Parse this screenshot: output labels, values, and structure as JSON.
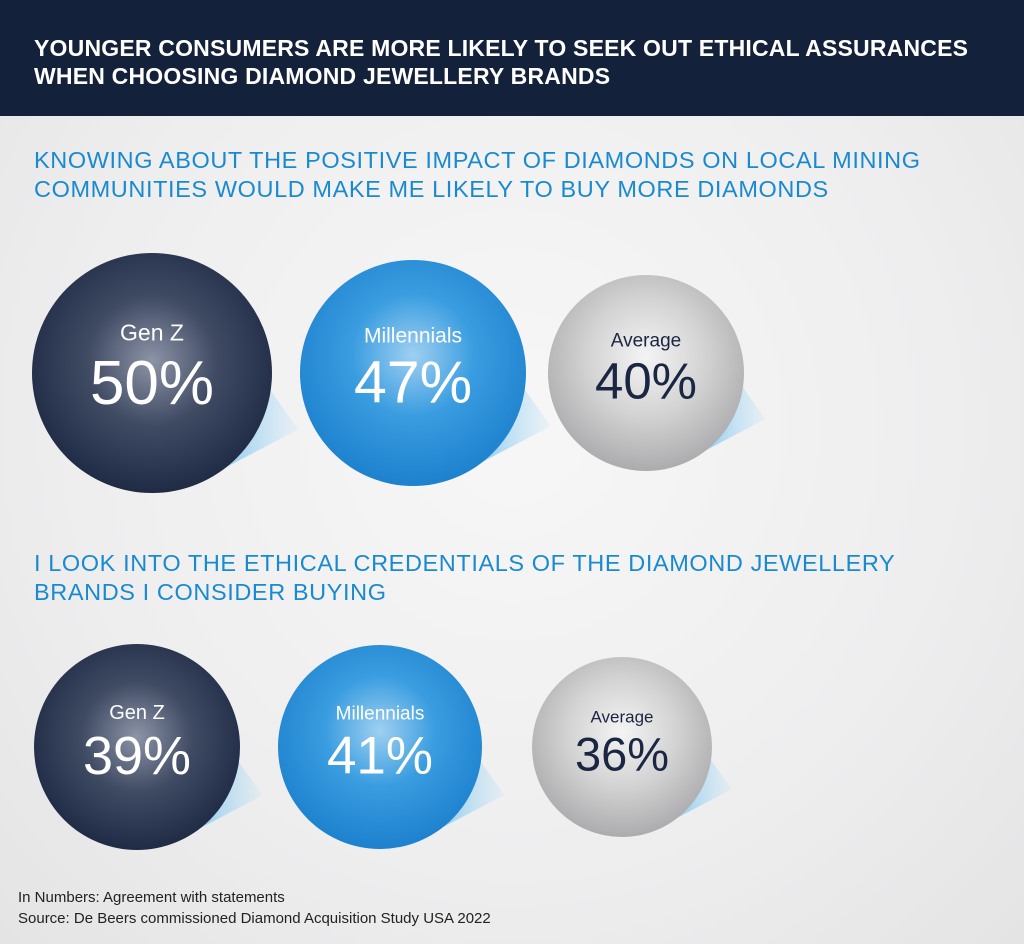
{
  "header": {
    "title": "YOUNGER CONSUMERS ARE MORE LIKELY TO SEEK OUT ETHICAL ASSURANCES WHEN CHOOSING DIAMOND JEWELLERY BRANDS"
  },
  "chart_data": [
    {
      "type": "bubble",
      "title": "KNOWING ABOUT THE POSITIVE IMPACT OF DIAMONDS ON LOCAL MINING COMMUNITIES WOULD MAKE ME LIKELY TO BUY MORE DIAMONDS",
      "categories": [
        "Gen Z",
        "Millennials",
        "Average"
      ],
      "values": [
        50,
        47,
        40
      ],
      "value_labels": [
        "50%",
        "47%",
        "40%"
      ],
      "unit": "%"
    },
    {
      "type": "bubble",
      "title": "I LOOK INTO THE ETHICAL CREDENTIALS OF THE DIAMOND JEWELLERY BRANDS I CONSIDER BUYING",
      "categories": [
        "Gen Z",
        "Millennials",
        "Average"
      ],
      "values": [
        39,
        41,
        36
      ],
      "value_labels": [
        "39%",
        "41%",
        "36%"
      ],
      "unit": "%"
    }
  ],
  "colors": {
    "header_bg": "#14213a",
    "section_title": "#1a8ad0",
    "gen_z": "#1b2742",
    "millennials": "#1f86d2",
    "average": "#b4b4b6"
  },
  "footer": {
    "line1": "In Numbers: Agreement with statements",
    "line2": "Source: De Beers commissioned Diamond Acquisition Study USA 2022"
  }
}
